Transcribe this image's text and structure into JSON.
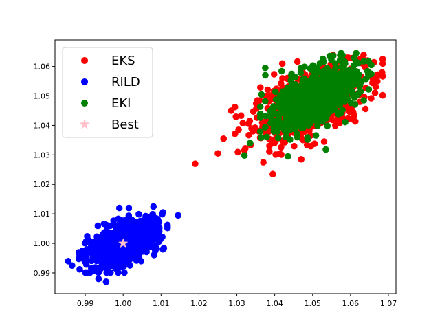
{
  "chart_data": {
    "type": "scatter",
    "title": "",
    "xlabel": "",
    "ylabel": "",
    "xlim": [
      0.982,
      1.072
    ],
    "ylim": [
      0.983,
      1.069
    ],
    "xticks": [
      "0.99",
      "1.00",
      "1.01",
      "1.02",
      "1.03",
      "1.04",
      "1.05",
      "1.06",
      "1.07"
    ],
    "yticks": [
      "0.99",
      "1.00",
      "1.01",
      "1.02",
      "1.03",
      "1.04",
      "1.05",
      "1.06"
    ],
    "grid": false,
    "legend_position": "top-left",
    "series": [
      {
        "name": "EKS",
        "color": "#ff0000",
        "marker": "circle",
        "cloud": {
          "center": [
            1.049,
            1.047
          ],
          "spread": [
            0.0075,
            0.0065
          ],
          "correlation": 0.55,
          "count": 600
        },
        "points": [
          [
            1.019,
            1.027
          ],
          [
            1.025,
            1.0305
          ],
          [
            1.0265,
            1.0355
          ],
          [
            1.0395,
            1.0235
          ],
          [
            1.0665,
            1.056
          ],
          [
            1.0645,
            1.062
          ],
          [
            1.042,
            1.061
          ],
          [
            1.047,
            1.0285
          ],
          [
            1.061,
            1.0435
          ],
          [
            1.0285,
            1.045
          ],
          [
            1.032,
            1.0315
          ],
          [
            1.037,
            1.0275
          ]
        ]
      },
      {
        "name": "RILD",
        "color": "#0000ff",
        "marker": "circle",
        "cloud": {
          "center": [
            1.0,
            1.0
          ],
          "spread": [
            0.0045,
            0.0038
          ],
          "correlation": 0.55,
          "count": 900
        },
        "points": [
          [
            1.0145,
            1.0095
          ],
          [
            0.9855,
            0.994
          ],
          [
            0.9865,
            0.9925
          ],
          [
            0.9955,
            0.987
          ],
          [
            1.0105,
            0.998
          ],
          [
            0.999,
            1.012
          ],
          [
            1.008,
            1.0125
          ],
          [
            1.0015,
            1.012
          ],
          [
            0.9935,
            0.988
          ],
          [
            0.991,
            1.001
          ],
          [
            1.0105,
            1.0105
          ]
        ]
      },
      {
        "name": "EKI",
        "color": "#008000",
        "marker": "circle",
        "cloud": {
          "center": [
            1.0505,
            1.0495
          ],
          "spread": [
            0.0055,
            0.0055
          ],
          "correlation": 0.55,
          "count": 750
        },
        "points": [
          [
            1.032,
            1.0298
          ],
          [
            1.0335,
            1.034
          ],
          [
            1.0365,
            1.0505
          ],
          [
            1.0375,
            1.0595
          ],
          [
            1.0545,
            1.0635
          ],
          [
            1.0575,
            1.0645
          ],
          [
            1.0615,
            1.0645
          ],
          [
            1.0655,
            1.0575
          ],
          [
            1.0535,
            1.0318
          ],
          [
            1.0435,
            1.0295
          ],
          [
            1.0635,
            1.0485
          ],
          [
            1.0655,
            1.0605
          ]
        ]
      },
      {
        "name": "Best",
        "color": "#ffc0cb",
        "marker": "star",
        "points": [
          [
            1.0,
            1.0
          ]
        ]
      }
    ]
  }
}
